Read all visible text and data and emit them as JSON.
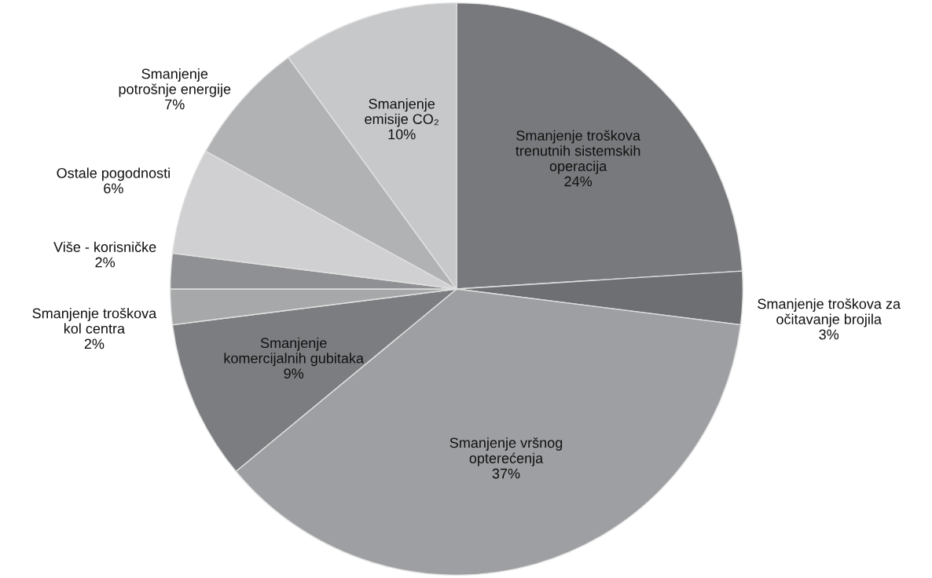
{
  "chart_data": {
    "type": "pie",
    "categories": [
      "Smanjenje troškova\ntrenutnih sistemskih\noperacija",
      "Smanjenje troškova za\nočitavanje brojila",
      "Smanjenje vršnog\nopterećenja",
      "Smanjenje\nkomercijalnih gubitaka",
      "Smanjenje troškova\nkol centra",
      "Više - korisničke",
      "Ostale pogodnosti",
      "Smanjenje\npotrošnje energije",
      "Smanjenje\nemisije CO₂"
    ],
    "values": [
      24,
      3,
      37,
      9,
      2,
      2,
      6,
      7,
      10
    ],
    "value_labels": [
      "24%",
      "3%",
      "37%",
      "9%",
      "2%",
      "2%",
      "6%",
      "7%",
      "10%"
    ],
    "colors": [
      "#78797c",
      "#6e6f72",
      "#9e9fa2",
      "#7c7d80",
      "#a7a8aa",
      "#8f9093",
      "#d0d0d2",
      "#b1b2b4",
      "#c7c8ca"
    ],
    "legend": false
  }
}
